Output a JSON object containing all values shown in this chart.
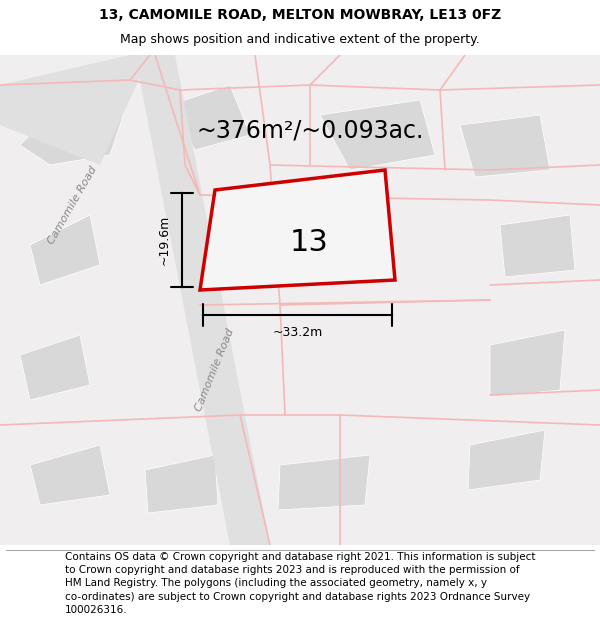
{
  "title_line1": "13, CAMOMILE ROAD, MELTON MOWBRAY, LE13 0FZ",
  "title_line2": "Map shows position and indicative extent of the property.",
  "area_text": "~376m²/~0.093ac.",
  "width_label": "~33.2m",
  "height_label": "~19.6m",
  "number_label": "13",
  "footer_wrapped": "Contains OS data © Crown copyright and database right 2021. This information is subject\nto Crown copyright and database rights 2023 and is reproduced with the permission of\nHM Land Registry. The polygons (including the associated geometry, namely x, y\nco-ordinates) are subject to Crown copyright and database rights 2023 Ordnance Survey\n100026316.",
  "bg_color": "#f0eeee",
  "road_color_light": "#f5b8b8",
  "plot_color": "#cc0000",
  "block_color": "#d8d8d8",
  "title_fontsize": 10,
  "subtitle_fontsize": 9,
  "area_fontsize": 17,
  "number_fontsize": 22,
  "footer_fontsize": 7.5
}
